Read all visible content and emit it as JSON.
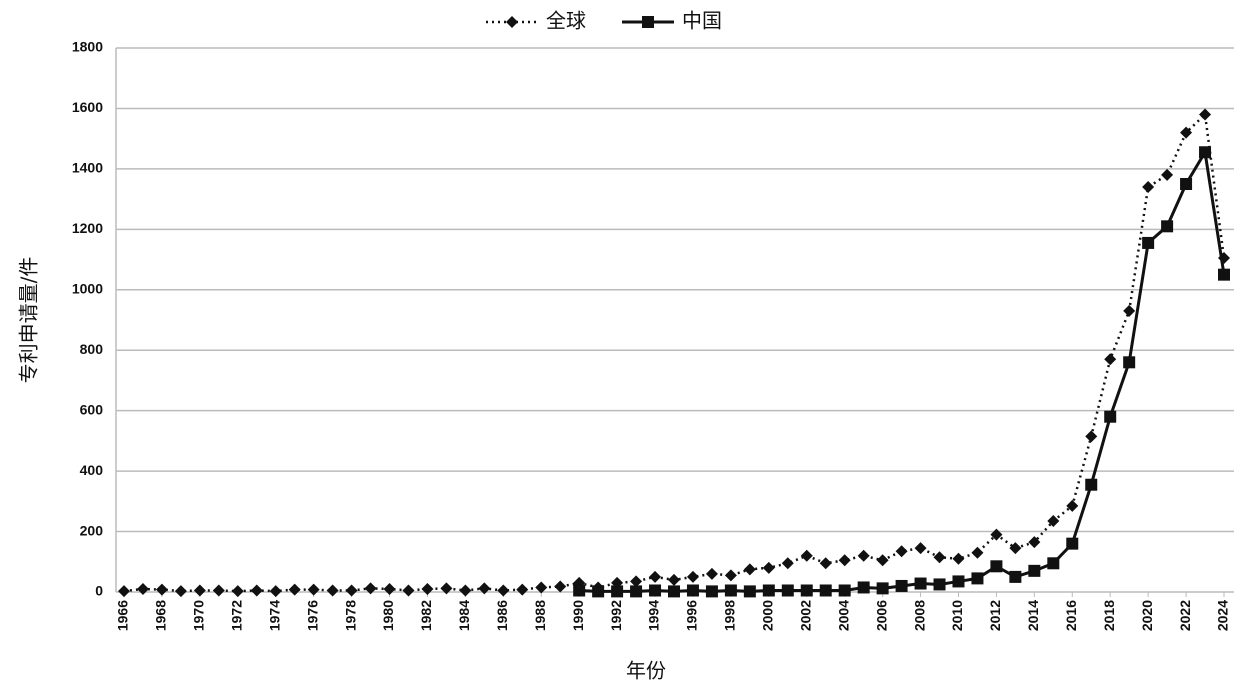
{
  "chart_data": {
    "type": "line",
    "x": [
      1966,
      1967,
      1968,
      1969,
      1970,
      1971,
      1972,
      1973,
      1974,
      1975,
      1976,
      1977,
      1978,
      1979,
      1980,
      1981,
      1982,
      1983,
      1984,
      1985,
      1986,
      1987,
      1988,
      1989,
      1990,
      1991,
      1992,
      1993,
      1994,
      1995,
      1996,
      1997,
      1998,
      1999,
      2000,
      2001,
      2002,
      2003,
      2004,
      2005,
      2006,
      2007,
      2008,
      2009,
      2010,
      2011,
      2012,
      2013,
      2014,
      2015,
      2016,
      2017,
      2018,
      2019,
      2020,
      2021,
      2022,
      2023,
      2024
    ],
    "series": [
      {
        "name": "全球",
        "color": "#111111",
        "marker": "diamond",
        "dash": "dotted",
        "values": [
          3,
          10,
          8,
          3,
          5,
          5,
          3,
          5,
          3,
          8,
          8,
          5,
          5,
          12,
          10,
          5,
          10,
          12,
          5,
          12,
          5,
          8,
          15,
          18,
          30,
          15,
          30,
          35,
          50,
          40,
          50,
          60,
          55,
          75,
          80,
          95,
          120,
          95,
          105,
          120,
          105,
          135,
          145,
          115,
          110,
          130,
          190,
          145,
          165,
          235,
          285,
          515,
          770,
          930,
          1340,
          1380,
          1520,
          1580,
          1105
        ]
      },
      {
        "name": "中国",
        "color": "#111111",
        "marker": "square",
        "dash": "solid",
        "values": [
          null,
          null,
          null,
          null,
          null,
          null,
          null,
          null,
          null,
          null,
          null,
          null,
          null,
          null,
          null,
          null,
          null,
          null,
          null,
          null,
          null,
          null,
          null,
          null,
          5,
          2,
          2,
          2,
          5,
          2,
          5,
          2,
          5,
          2,
          5,
          5,
          5,
          5,
          5,
          15,
          12,
          20,
          28,
          25,
          35,
          45,
          85,
          50,
          70,
          95,
          160,
          355,
          580,
          760,
          1155,
          1210,
          1350,
          1455,
          1050
        ]
      }
    ],
    "xlim": [
      1966,
      2024
    ],
    "xticks": [
      1966,
      1968,
      1970,
      1972,
      1974,
      1976,
      1978,
      1980,
      1982,
      1984,
      1986,
      1988,
      1990,
      1992,
      1994,
      1996,
      1998,
      2000,
      2002,
      2004,
      2006,
      2008,
      2010,
      2012,
      2014,
      2016,
      2018,
      2020,
      2022,
      2024
    ],
    "ylim": [
      0,
      1800
    ],
    "yticks": [
      0,
      200,
      400,
      600,
      800,
      1000,
      1200,
      1400,
      1600,
      1800
    ],
    "xlabel": "年份",
    "ylabel": "专利申请量/件",
    "grid": true,
    "legend": "top"
  }
}
